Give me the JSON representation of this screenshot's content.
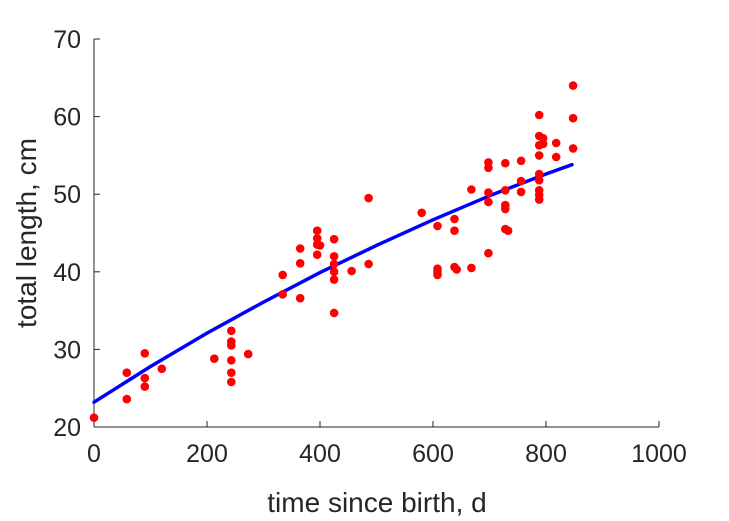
{
  "chart_data": {
    "type": "scatter",
    "title": "",
    "xlabel": "time since birth, d",
    "ylabel": "total length, cm",
    "xlim": [
      0,
      1000
    ],
    "ylim": [
      20,
      70
    ],
    "xticks": [
      0,
      200,
      400,
      600,
      800,
      1000
    ],
    "yticks": [
      20,
      30,
      40,
      50,
      60,
      70
    ],
    "grid": false,
    "legend": "none",
    "series": [
      {
        "kind": "points",
        "color": "#ff0000",
        "points": [
          [
            0,
            21.2
          ],
          [
            58,
            27.0
          ],
          [
            58,
            23.6
          ],
          [
            90,
            29.5
          ],
          [
            90,
            26.3
          ],
          [
            90,
            25.2
          ],
          [
            120,
            27.5
          ],
          [
            213,
            28.8
          ],
          [
            243,
            32.4
          ],
          [
            243,
            31.0
          ],
          [
            243,
            30.5
          ],
          [
            243,
            28.6
          ],
          [
            243,
            27.0
          ],
          [
            243,
            25.8
          ],
          [
            273,
            29.4
          ],
          [
            334,
            39.6
          ],
          [
            334,
            37.1
          ],
          [
            365,
            43.0
          ],
          [
            365,
            41.1
          ],
          [
            365,
            36.6
          ],
          [
            395,
            45.3
          ],
          [
            395,
            44.3
          ],
          [
            395,
            43.5
          ],
          [
            395,
            42.2
          ],
          [
            400,
            43.4
          ],
          [
            425,
            44.2
          ],
          [
            425,
            42.0
          ],
          [
            425,
            41.0
          ],
          [
            425,
            40.0
          ],
          [
            425,
            39.0
          ],
          [
            425,
            34.7
          ],
          [
            456,
            40.1
          ],
          [
            486,
            49.5
          ],
          [
            486,
            41.0
          ],
          [
            580,
            47.6
          ],
          [
            608,
            45.9
          ],
          [
            608,
            40.4
          ],
          [
            608,
            40.0
          ],
          [
            608,
            39.6
          ],
          [
            638,
            46.8
          ],
          [
            638,
            45.3
          ],
          [
            638,
            40.6
          ],
          [
            642,
            40.3
          ],
          [
            668,
            50.6
          ],
          [
            668,
            40.5
          ],
          [
            698,
            54.1
          ],
          [
            698,
            53.4
          ],
          [
            698,
            50.2
          ],
          [
            698,
            49.0
          ],
          [
            698,
            42.4
          ],
          [
            728,
            54.0
          ],
          [
            728,
            50.5
          ],
          [
            728,
            48.6
          ],
          [
            728,
            48.1
          ],
          [
            728,
            45.5
          ],
          [
            733,
            45.3
          ],
          [
            756,
            54.3
          ],
          [
            756,
            51.7
          ],
          [
            756,
            50.3
          ],
          [
            788,
            60.2
          ],
          [
            788,
            57.5
          ],
          [
            788,
            56.3
          ],
          [
            788,
            55.0
          ],
          [
            788,
            52.6
          ],
          [
            788,
            51.8
          ],
          [
            788,
            50.5
          ],
          [
            788,
            49.9
          ],
          [
            788,
            49.3
          ],
          [
            795,
            57.2
          ],
          [
            795,
            56.5
          ],
          [
            818,
            56.6
          ],
          [
            818,
            54.8
          ],
          [
            848,
            64.0
          ],
          [
            848,
            59.8
          ],
          [
            848,
            55.9
          ]
        ]
      },
      {
        "kind": "fit-line",
        "color": "#0000ff",
        "points": [
          [
            0,
            23.2
          ],
          [
            100,
            27.8
          ],
          [
            200,
            32.1
          ],
          [
            300,
            36.1
          ],
          [
            400,
            39.9
          ],
          [
            500,
            43.4
          ],
          [
            600,
            46.7
          ],
          [
            700,
            49.8
          ],
          [
            800,
            52.6
          ],
          [
            846,
            53.8
          ]
        ]
      }
    ]
  }
}
